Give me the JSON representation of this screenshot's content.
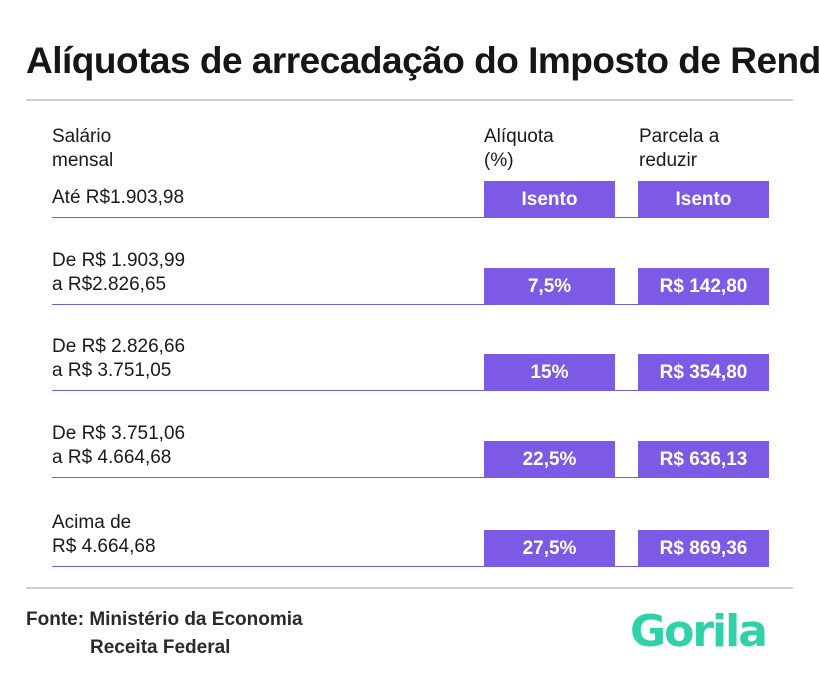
{
  "title": "Alíquotas de arrecadação do Imposto de Renda",
  "table": {
    "headers": {
      "salario": "Salário\nmensal",
      "aliquota": "Alíquota\n (%)",
      "parcela": "Parcela a\nreduzir"
    },
    "rows": [
      {
        "salario": "Até R$1.903,98",
        "aliquota": "Isento",
        "parcela": "Isento"
      },
      {
        "salario": "De R$ 1.903,99\na R$2.826,65",
        "aliquota": "7,5%",
        "parcela": "R$ 142,80"
      },
      {
        "salario": "De R$ 2.826,66\na R$ 3.751,05",
        "aliquota": "15%",
        "parcela": "R$ 354,80"
      },
      {
        "salario": "De R$ 3.751,06\na R$ 4.664,68",
        "aliquota": "22,5%",
        "parcela": "R$ 636,13"
      },
      {
        "salario": "Acima de\nR$ 4.664,68",
        "aliquota": "27,5%",
        "parcela": "R$ 869,36"
      }
    ]
  },
  "source": {
    "line1": "Fonte: Ministério da Economia",
    "line2": "Receita Federal"
  },
  "logo": {
    "text": "Gorila",
    "color": "#2ed1a8"
  },
  "colors": {
    "accent": "#7c5ae6",
    "rule": "#cfcfcf"
  }
}
